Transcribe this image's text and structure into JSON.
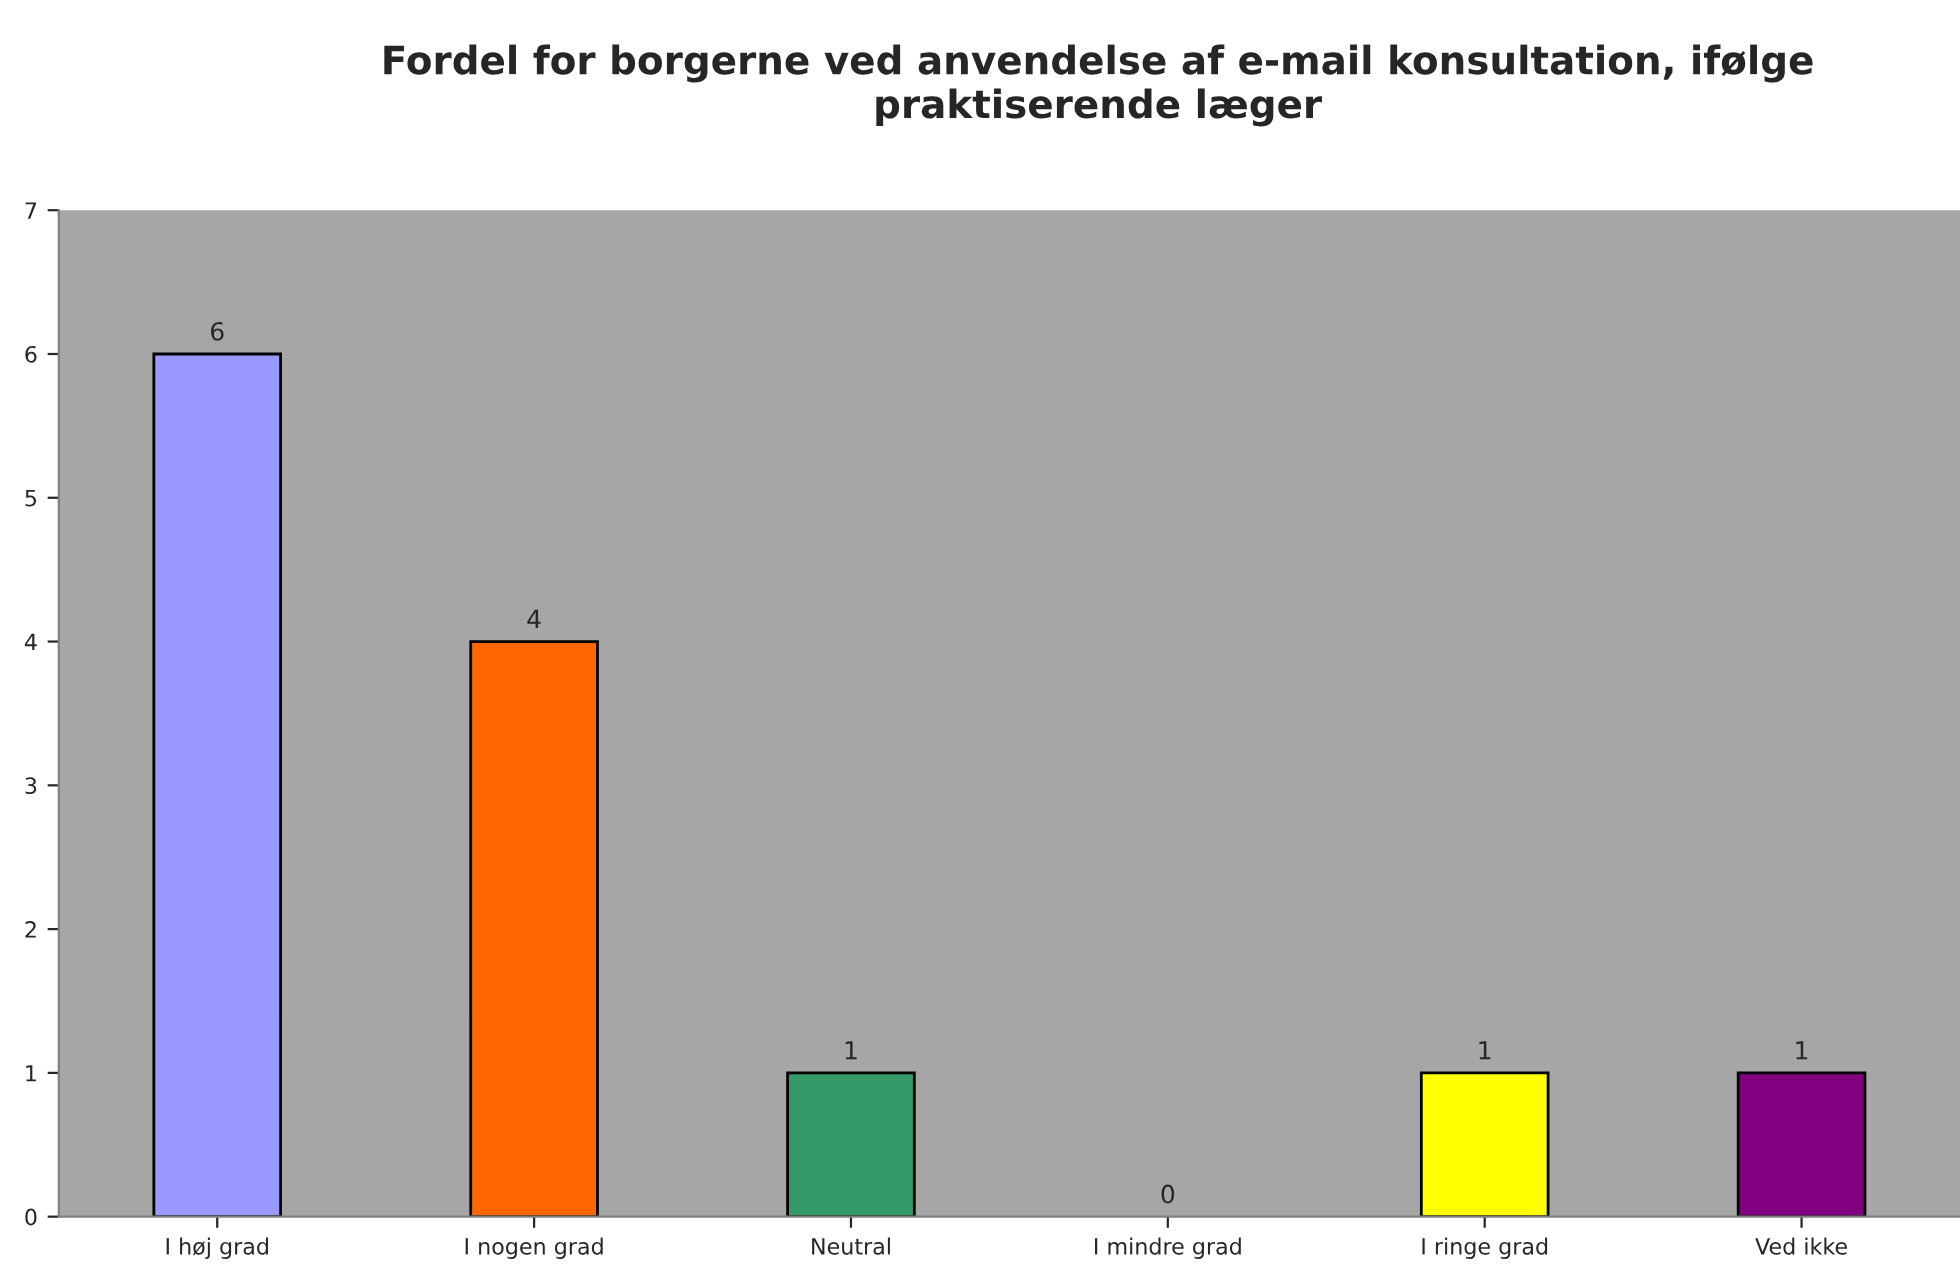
{
  "chart_data": {
    "type": "bar",
    "title": "Fordel for borgerne ved anvendelse af e-mail konsultation, ifølge praktiserende læger",
    "categories": [
      "I høj grad",
      "I nogen grad",
      "Neutral",
      "I mindre grad",
      "I ringe grad",
      "Ved ikke"
    ],
    "values": [
      6,
      4,
      1,
      0,
      1,
      1
    ],
    "colors": [
      "#9999ff",
      "#ff6600",
      "#339966",
      "#808080",
      "#ffff00",
      "#800080"
    ],
    "ylim": [
      0,
      7
    ],
    "yticks": [
      0,
      1,
      2,
      3,
      4,
      5,
      6,
      7
    ],
    "grid": false,
    "data_labels": true
  }
}
